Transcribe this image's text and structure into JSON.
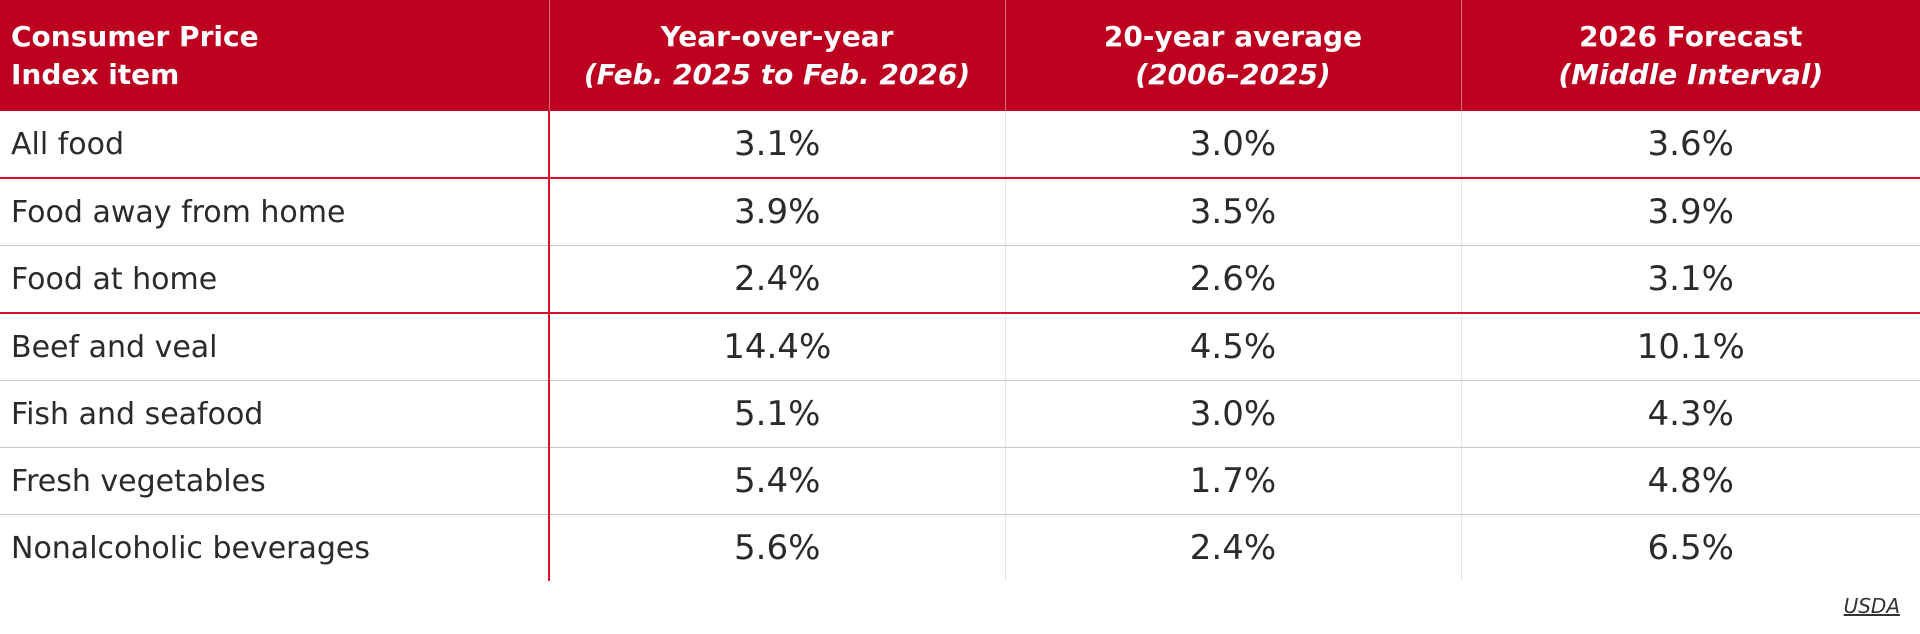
{
  "colors": {
    "header_bg": "#be0020",
    "accent_line": "#d8102e",
    "text": "#2b2b2b"
  },
  "headers": [
    {
      "main": "Consumer Price",
      "sub": "Index item"
    },
    {
      "main": "Year-over-year",
      "sub": "(Feb. 2025 to Feb. 2026)"
    },
    {
      "main": "20-year average",
      "sub": "(2006–2025)"
    },
    {
      "main": "2026 Forecast",
      "sub": "(Middle Interval)"
    }
  ],
  "rows": [
    {
      "item": "All food",
      "yoy": "3.1%",
      "avg": "3.0%",
      "forecast": "3.6%"
    },
    {
      "item": "Food away from home",
      "yoy": "3.9%",
      "avg": "3.5%",
      "forecast": "3.9%"
    },
    {
      "item": "Food at home",
      "yoy": "2.4%",
      "avg": "2.6%",
      "forecast": "3.1%"
    },
    {
      "item": "Beef and veal",
      "yoy": "14.4%",
      "avg": "4.5%",
      "forecast": "10.1%"
    },
    {
      "item": "Fish and seafood",
      "yoy": "5.1%",
      "avg": "3.0%",
      "forecast": "4.3%"
    },
    {
      "item": "Fresh vegetables",
      "yoy": "5.4%",
      "avg": "1.7%",
      "forecast": "4.8%"
    },
    {
      "item": "Nonalcoholic beverages",
      "yoy": "5.6%",
      "avg": "2.4%",
      "forecast": "6.5%"
    }
  ],
  "source": "USDA"
}
